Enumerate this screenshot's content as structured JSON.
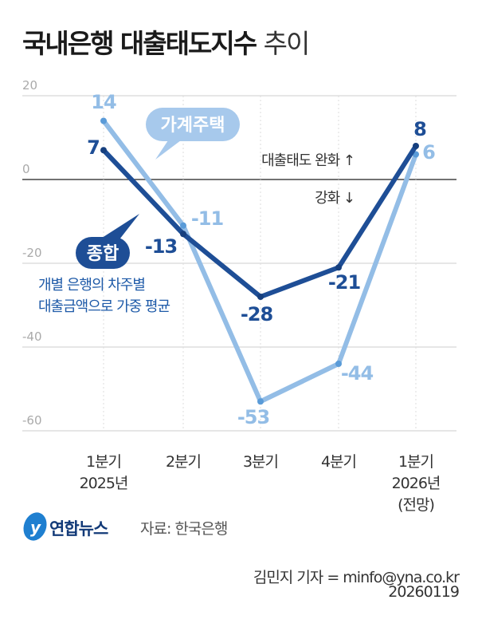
{
  "title": {
    "bold": "국내은행 대출태도지수",
    "light": "추이"
  },
  "chart_data": {
    "type": "line",
    "title": "국내은행 대출태도지수 추이",
    "categories": [
      [
        "1분기",
        "2025년"
      ],
      [
        "2분기"
      ],
      [
        "3분기"
      ],
      [
        "4분기"
      ],
      [
        "1분기",
        "2026년",
        "(전망)"
      ]
    ],
    "yticks": [
      20,
      0,
      -20,
      -40,
      -60
    ],
    "ylim": [
      -60,
      20
    ],
    "grid": true,
    "series": [
      {
        "name": "가계주택",
        "values": [
          14,
          -11,
          -53,
          -44,
          6
        ],
        "labels": [
          "14",
          "-11",
          "-53",
          "-44",
          "6"
        ],
        "color": "#93bde6",
        "dot": "#5a9bd8"
      },
      {
        "name": "종합",
        "values": [
          7,
          -13,
          -28,
          -21,
          8
        ],
        "labels": [
          "7",
          "-13",
          "-28",
          "-21",
          "8"
        ],
        "color": "#1e4e96",
        "dot": "#163f7e"
      }
    ],
    "annotations": {
      "up": "대출태도 완화 ↑",
      "down": "강화 ↓",
      "note": [
        "개별 은행의 차주별",
        "대출금액으로 가중 평균"
      ]
    }
  },
  "footer": {
    "logo": "연합뉴스",
    "source": "자료: 한국은행",
    "credit": "김민지 기자 = minfo@yna.co.kr",
    "date": "20260119"
  }
}
